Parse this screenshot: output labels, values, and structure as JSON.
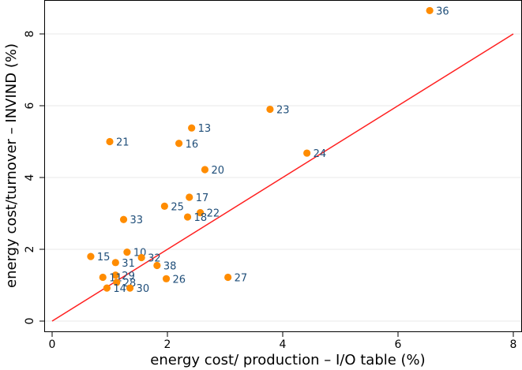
{
  "chart_data": {
    "type": "scatter",
    "title": "",
    "xlabel": "energy cost/ production – I/O table (%)",
    "ylabel": "energy cost/turnover – INVIND (%)",
    "xlim": [
      0,
      8
    ],
    "ylim": [
      0,
      8.8
    ],
    "x_ticks": [
      0,
      2,
      4,
      6,
      8
    ],
    "y_ticks": [
      0,
      2,
      4,
      6,
      8
    ],
    "x_tick_labels": [
      "0",
      "2",
      "4",
      "6",
      "8"
    ],
    "y_tick_labels": [
      "0",
      "2",
      "4",
      "6",
      "8"
    ],
    "grid": true,
    "legend": false,
    "reference_line": {
      "from": [
        0,
        0
      ],
      "to": [
        8,
        8
      ],
      "color": "#ff2020"
    },
    "marker_color": "#ff8c00",
    "label_color": "#1f4e79",
    "points": [
      {
        "label": "36",
        "x": 6.55,
        "y": 8.65
      },
      {
        "label": "23",
        "x": 3.78,
        "y": 5.9
      },
      {
        "label": "13",
        "x": 2.42,
        "y": 5.38
      },
      {
        "label": "21",
        "x": 1.0,
        "y": 5.0
      },
      {
        "label": "16",
        "x": 2.2,
        "y": 4.95
      },
      {
        "label": "24",
        "x": 4.42,
        "y": 4.68
      },
      {
        "label": "20",
        "x": 2.65,
        "y": 4.22
      },
      {
        "label": "17",
        "x": 2.38,
        "y": 3.45
      },
      {
        "label": "25",
        "x": 1.95,
        "y": 3.2
      },
      {
        "label": "22",
        "x": 2.57,
        "y": 3.02
      },
      {
        "label": "18",
        "x": 2.35,
        "y": 2.9
      },
      {
        "label": "33",
        "x": 1.24,
        "y": 2.83
      },
      {
        "label": "10",
        "x": 1.3,
        "y": 1.92
      },
      {
        "label": "15",
        "x": 0.67,
        "y": 1.8
      },
      {
        "label": "32",
        "x": 1.55,
        "y": 1.77
      },
      {
        "label": "31",
        "x": 1.1,
        "y": 1.63
      },
      {
        "label": "38",
        "x": 1.82,
        "y": 1.55
      },
      {
        "label": "29",
        "x": 1.1,
        "y": 1.28
      },
      {
        "label": "11",
        "x": 0.88,
        "y": 1.22
      },
      {
        "label": "27",
        "x": 3.05,
        "y": 1.22
      },
      {
        "label": "26",
        "x": 1.98,
        "y": 1.18
      },
      {
        "label": "28",
        "x": 1.12,
        "y": 1.08
      },
      {
        "label": "14",
        "x": 0.95,
        "y": 0.92
      },
      {
        "label": "30",
        "x": 1.35,
        "y": 0.92
      }
    ]
  }
}
